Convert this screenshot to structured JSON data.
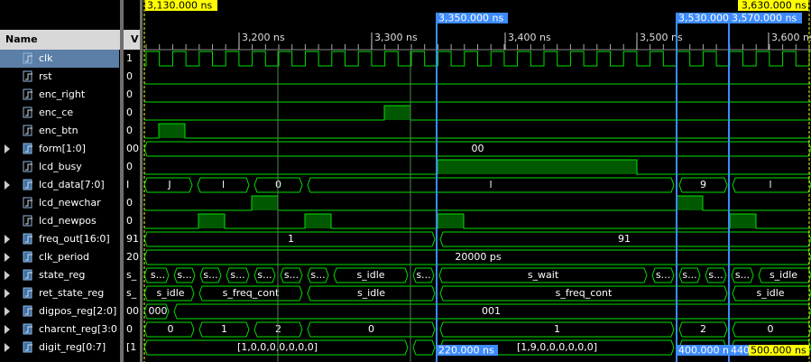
{
  "columns": [
    "Name",
    "V"
  ],
  "signals": [
    {
      "name": "clk",
      "value": "1"
    },
    {
      "name": "rst",
      "value": "0"
    },
    {
      "name": "enc_right",
      "value": "0"
    },
    {
      "name": "enc_ce",
      "value": "0"
    },
    {
      "name": "enc_btn",
      "value": "0"
    },
    {
      "name": "form[1:0]",
      "value": "00",
      "segments": [
        "00"
      ]
    },
    {
      "name": "lcd_busy",
      "value": "0"
    },
    {
      "name": "lcd_data[7:0]",
      "value": "I",
      "segments": [
        "J",
        "l",
        "0",
        "l",
        "9",
        "l"
      ]
    },
    {
      "name": "lcd_newchar",
      "value": "0"
    },
    {
      "name": "lcd_newpos",
      "value": "0"
    },
    {
      "name": "freq_out[16:0]",
      "value": "91",
      "segments": [
        "1",
        "91"
      ]
    },
    {
      "name": "clk_period",
      "value": "20",
      "segments": [
        "20000 ps"
      ]
    },
    {
      "name": "state_reg",
      "value": "s_",
      "segments": [
        "s...",
        "s...",
        "s...",
        "s...",
        "s...",
        "s...",
        "s...",
        "s_idle",
        "s...",
        "s_wait",
        "s...",
        "s...",
        "s...",
        "s...",
        "s_idle"
      ]
    },
    {
      "name": "ret_state_reg",
      "value": "s_",
      "segments": [
        "s_idle",
        "s_freq_cont",
        "s_idle",
        "s_freq_cont",
        "s_idle"
      ]
    },
    {
      "name": "digpos_reg[2:0]",
      "value": "00",
      "segments": [
        "000",
        "001"
      ]
    },
    {
      "name": "charcnt_reg[3:0",
      "value": "0",
      "segments": [
        "0",
        "1",
        "2",
        "0",
        "1",
        "2",
        "0"
      ]
    },
    {
      "name": "digit_reg[0:7]",
      "value": "[1",
      "segments": [
        "[1,0,0,0,0,0,0,0]",
        "[1,9,0,0,0,0,0,0]"
      ]
    }
  ],
  "ruler": [
    "3,200 ns",
    "3,300 ns",
    "3,400 ns",
    "3,500 ns",
    "3,600 ns"
  ],
  "markers": {
    "start": "3,130.000 ns",
    "end": "3,630.000 ns",
    "cursors": [
      "3,350.000 ns",
      "3,530.000",
      "3,570.000 ns"
    ],
    "deltas": [
      "220.000 ns",
      "400.000 n",
      "440",
      "500.000 ns"
    ]
  }
}
